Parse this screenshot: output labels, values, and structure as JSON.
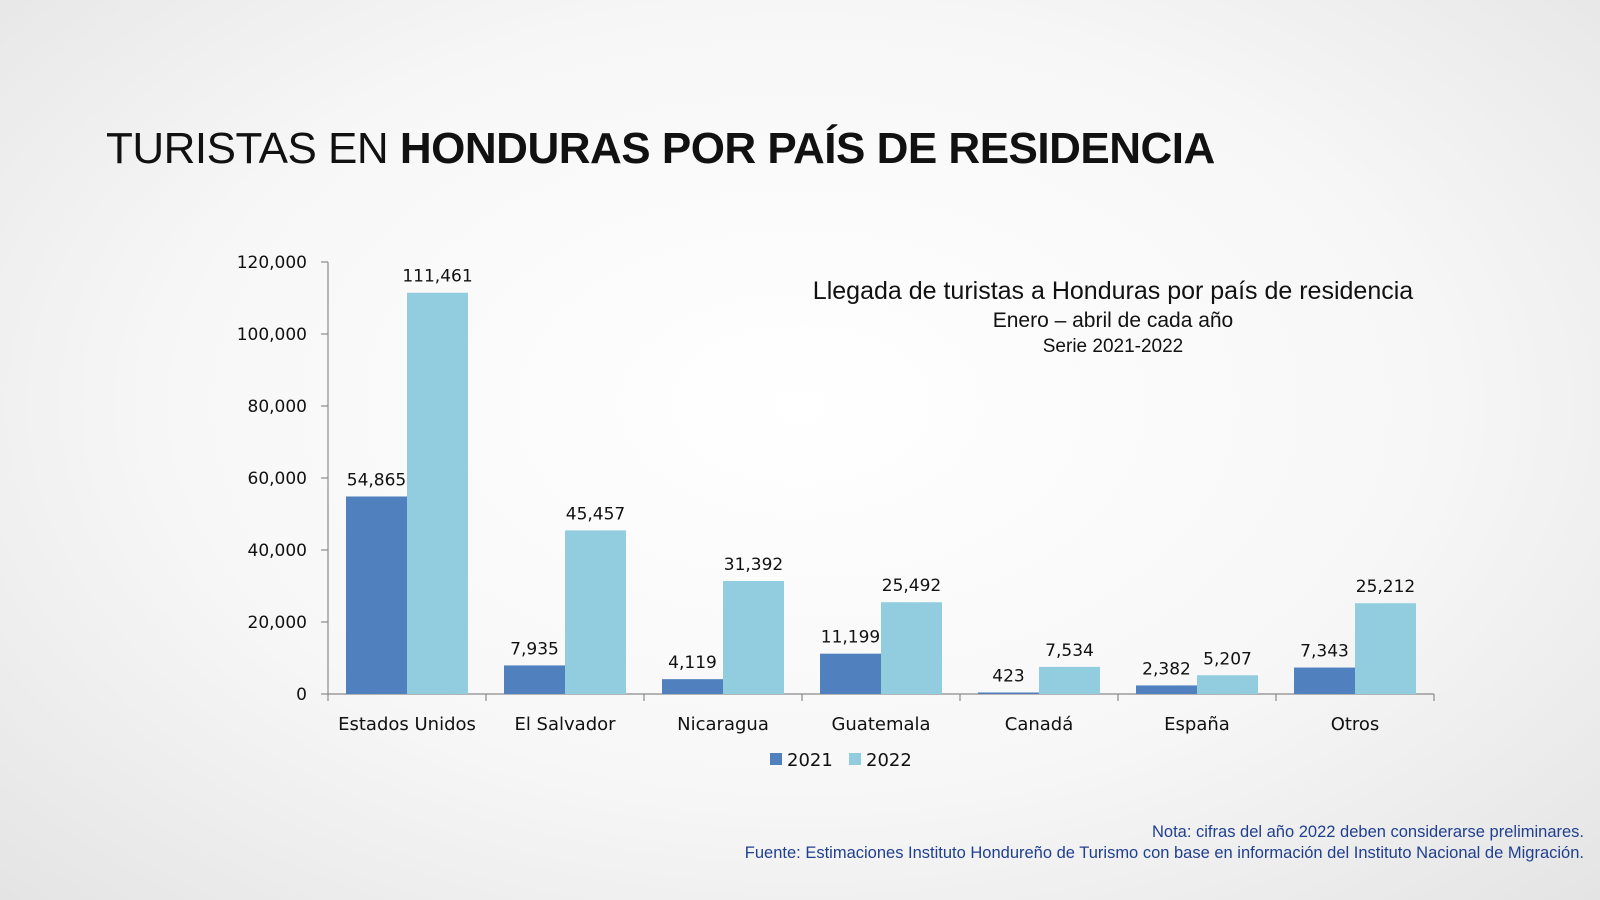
{
  "page": {
    "title_light": "TURISTAS EN ",
    "title_bold": "HONDURAS POR PAÍS DE RESIDENCIA"
  },
  "chart_data": {
    "type": "bar",
    "title": "Llegada de turistas a Honduras por país de residencia",
    "subtitle": "Enero – abril de cada año",
    "subtitle2": "Serie 2021-2022",
    "categories": [
      "Estados Unidos",
      "El Salvador",
      "Nicaragua",
      "Guatemala",
      "Canadá",
      "España",
      "Otros"
    ],
    "series": [
      {
        "name": "2021",
        "color": "#5080be",
        "values": [
          54865,
          7935,
          4119,
          11199,
          423,
          2382,
          7343
        ],
        "labels": [
          "54,865",
          "7,935",
          "4,119",
          "11,199",
          "423",
          "2,382",
          "7,343"
        ]
      },
      {
        "name": "2022",
        "color": "#92cddf",
        "values": [
          111461,
          45457,
          31392,
          25492,
          7534,
          5207,
          25212
        ],
        "labels": [
          "111,461",
          "45,457",
          "31,392",
          "25,492",
          "7,534",
          "5,207",
          "25,212"
        ]
      }
    ],
    "ylim": [
      0,
      120000
    ],
    "yticks": [
      0,
      20000,
      40000,
      60000,
      80000,
      100000,
      120000
    ],
    "ytick_labels": [
      "0",
      "20,000",
      "40,000",
      "60,000",
      "80,000",
      "100,000",
      "120,000"
    ],
    "xlabel": "",
    "ylabel": "",
    "legend_position": "bottom",
    "grid": false
  },
  "notes": {
    "nota": "Nota: cifras del año 2022 deben considerarse preliminares.",
    "fuente": "Fuente: Estimaciones Instituto Hondureño de Turismo con base en información del Instituto Nacional de Migración."
  }
}
